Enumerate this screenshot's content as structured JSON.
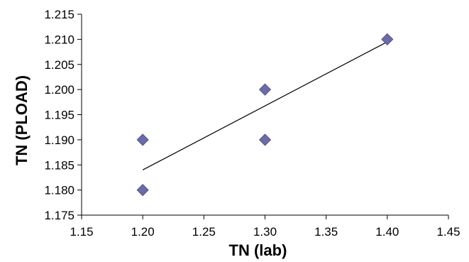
{
  "chart_data": {
    "type": "scatter",
    "xlabel": "TN (lab)",
    "ylabel": "TN (PLOAD)",
    "xlim": [
      1.15,
      1.45
    ],
    "ylim": [
      1.175,
      1.215
    ],
    "x_ticks": [
      "1.15",
      "1.20",
      "1.25",
      "1.30",
      "1.35",
      "1.40",
      "1.45"
    ],
    "y_ticks": [
      "1.175",
      "1.180",
      "1.185",
      "1.190",
      "1.195",
      "1.200",
      "1.205",
      "1.210",
      "1.215"
    ],
    "points": [
      {
        "x": 1.2,
        "y": 1.19
      },
      {
        "x": 1.2,
        "y": 1.18
      },
      {
        "x": 1.3,
        "y": 1.2
      },
      {
        "x": 1.3,
        "y": 1.19
      },
      {
        "x": 1.4,
        "y": 1.21
      }
    ],
    "trendline": {
      "x_start": 1.2,
      "y_start": 1.184,
      "x_end": 1.4,
      "y_end": 1.2095
    },
    "marker_color": "#6b6ba8",
    "trendline_color": "#000000",
    "grid": false,
    "legend": "none"
  }
}
